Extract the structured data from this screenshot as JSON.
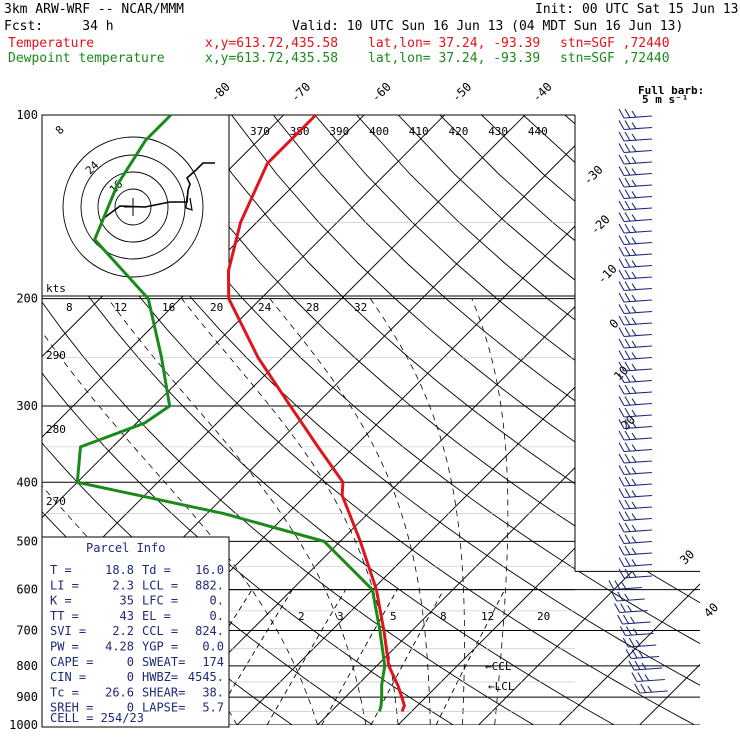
{
  "header": {
    "model": "3km ARW-WRF -- NCAR/MMM",
    "init": "Init: 00 UTC Sat 15 Jun 13",
    "fcst": "Fcst:     34 h",
    "valid": "Valid: 10 UTC Sun 16 Jun 13 (04 MDT Sun 16 Jun 13)",
    "temp_label": "Temperature",
    "dew_label": "Dewpoint temperature",
    "xy": "x,y=613.72,435.58",
    "latlon": "lat,lon= 37.24, -93.39",
    "stn": "stn=SGF ,72440"
  },
  "hodograph": {
    "units": "kts",
    "ring_labels": [
      "8",
      "24",
      "16"
    ],
    "speed_ticks": [
      "8",
      "12",
      "16",
      "20",
      "24",
      "28",
      "32"
    ]
  },
  "windbarb_key": {
    "line1": "Full barb:",
    "line2": "5 m s⁻¹"
  },
  "parcel": {
    "title": "Parcel Info",
    "rows": [
      {
        "l1": "T  =",
        "v1": "18.8",
        "l2": "Td =",
        "v2": "16.0"
      },
      {
        "l1": "LI =",
        "v1": "2.3",
        "l2": "LCL =",
        "v2": "882."
      },
      {
        "l1": "K  =",
        "v1": "35",
        "l2": "LFC =",
        "v2": "0."
      },
      {
        "l1": "TT =",
        "v1": "43",
        "l2": "EL  =",
        "v2": "0."
      },
      {
        "l1": "SVI =",
        "v1": "2.2",
        "l2": "CCL =",
        "v2": "824."
      },
      {
        "l1": "PW =",
        "v1": "4.28",
        "l2": "YGP =",
        "v2": "0.0"
      },
      {
        "l1": "CAPE =",
        "v1": "0",
        "l2": "SWEAT=",
        "v2": "174"
      },
      {
        "l1": "CIN =",
        "v1": "0",
        "l2": "HWBZ=",
        "v2": "4545."
      },
      {
        "l1": "Tc =",
        "v1": "26.6",
        "l2": "SHEAR=",
        "v2": "38."
      },
      {
        "l1": "SREH =",
        "v1": "0",
        "l2": "LAPSE=",
        "v2": "5.7"
      }
    ],
    "cell": "CELL = 254/23"
  },
  "annotations": {
    "ccl": "CCL",
    "lcl": "LCL"
  },
  "chart_data": {
    "type": "line",
    "title": "",
    "xlabel": "",
    "ylabel": "",
    "pressure_levels": [
      100,
      200,
      300,
      400,
      500,
      600,
      700,
      800,
      900,
      1000
    ],
    "isotherm_labels": [
      "-80",
      "-70",
      "-60",
      "-50",
      "-40",
      "-30",
      "-20",
      "-10",
      "0",
      "10",
      "20",
      "30",
      "40"
    ],
    "theta_labels_top": [
      "370",
      "380",
      "390",
      "400",
      "410",
      "420",
      "430",
      "440"
    ],
    "theta_labels_left": [
      "290",
      "280",
      "270"
    ],
    "mixing_ratio_labels": [
      "2",
      "3",
      "5",
      "8",
      "12",
      "20"
    ],
    "temperature_color": "#e0141c",
    "dewpoint_color": "#1a8a1a",
    "series": [
      {
        "name": "Temperature",
        "pressure": [
          950,
          930,
          900,
          860,
          800,
          700,
          600,
          500,
          420,
          400,
          350,
          300,
          250,
          200,
          180,
          150,
          120,
          100
        ],
        "temp": [
          18.8,
          18.4,
          17.0,
          15.0,
          11.5,
          6.5,
          0.5,
          -7.5,
          -15.5,
          -17.0,
          -24.5,
          -33.0,
          -43.0,
          -54.0,
          -57.5,
          -62.0,
          -66.0,
          -66.0
        ]
      },
      {
        "name": "Dewpoint temperature",
        "pressure": [
          950,
          930,
          900,
          860,
          800,
          700,
          600,
          500,
          450,
          400,
          350,
          320,
          300,
          250,
          200,
          160,
          130,
          110,
          100
        ],
        "temp": [
          16.0,
          15.5,
          14.5,
          13.0,
          11.0,
          6.0,
          0.0,
          -12.0,
          -28.0,
          -50.0,
          -54.0,
          -49.0,
          -48.0,
          -55.0,
          -64.0,
          -78.0,
          -82.0,
          -84.0,
          -84.0
        ]
      }
    ]
  }
}
